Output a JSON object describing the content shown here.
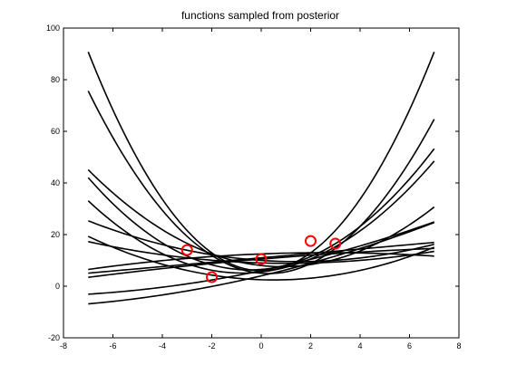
{
  "chart_data": {
    "type": "line",
    "title": "functions sampled from posterior",
    "xlabel": "",
    "ylabel": "",
    "xlim": [
      -8,
      8
    ],
    "ylim": [
      -20,
      100
    ],
    "xticks": [
      -8,
      -6,
      -4,
      -2,
      0,
      2,
      4,
      6,
      8
    ],
    "yticks": [
      -20,
      0,
      20,
      40,
      60,
      80,
      100
    ],
    "grid": false,
    "legend": "none",
    "line_color": "#000000",
    "marker_color": "#ff0000",
    "x": [
      -7,
      7
    ],
    "series": [
      {
        "coeffs": [
          6.0,
          0.0,
          1.73
        ]
      },
      {
        "coeffs": [
          5.0,
          -0.78,
          1.33
        ]
      },
      {
        "coeffs": [
          6.5,
          0.8,
          0.84
        ]
      },
      {
        "coeffs": [
          5.5,
          1.1,
          0.72
        ]
      },
      {
        "coeffs": [
          8.0,
          -1.03,
          0.61
        ]
      },
      {
        "coeffs": [
          2.5,
          -0.3,
          0.3
        ]
      },
      {
        "coeffs": [
          10.0,
          -0.65,
          0.22
        ]
      },
      {
        "coeffs": [
          9.0,
          -0.27,
          0.13
        ]
      },
      {
        "coeffs": [
          6.0,
          2.0,
          0.1
        ]
      },
      {
        "coeffs": [
          4.0,
          2.25,
          0.1
        ]
      },
      {
        "coeffs": [
          11.0,
          0.85,
          0.0
        ]
      },
      {
        "coeffs": [
          10.5,
          0.8,
          -0.03
        ]
      },
      {
        "coeffs": [
          12.5,
          0.37,
          -0.07
        ]
      }
    ],
    "observations": [
      {
        "x": -3,
        "y": 14
      },
      {
        "x": -2,
        "y": 3.5
      },
      {
        "x": 0,
        "y": 10.5
      },
      {
        "x": 2,
        "y": 17.5
      },
      {
        "x": 3,
        "y": 16.5
      }
    ]
  }
}
